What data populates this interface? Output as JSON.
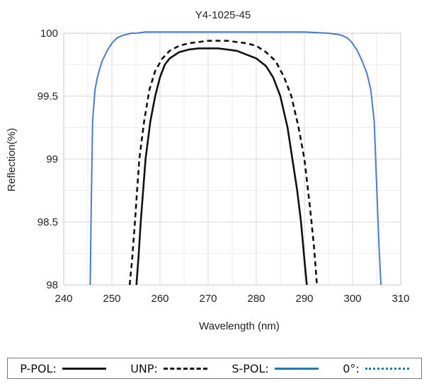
{
  "chart_data": {
    "type": "line",
    "title": "Y4-1025-45",
    "xlabel": "Wavelength (nm)",
    "ylabel": "Reflection(%)",
    "xlim": [
      240,
      310
    ],
    "ylim": [
      98,
      100
    ],
    "xticks": [
      "240",
      "250",
      "260",
      "270",
      "280",
      "290",
      "300",
      "310"
    ],
    "yticks": [
      "98",
      "98.5",
      "99",
      "99.5",
      "100"
    ],
    "grid": true,
    "legend_position": "bottom",
    "series": [
      {
        "name": "P-POL",
        "color": "#111111",
        "style": "solid",
        "x": [
          255.1,
          255.5,
          256.0,
          257.0,
          258.0,
          259.0,
          260.0,
          261.0,
          262.0,
          264.0,
          266.0,
          268.0,
          270.0,
          272.0,
          274.0,
          276.0,
          278.0,
          280.0,
          282.0,
          283.5,
          285.0,
          286.5,
          287.5,
          288.5,
          289.3,
          290.0,
          290.5
        ],
        "y": [
          98.0,
          98.2,
          98.5,
          99.0,
          99.3,
          99.5,
          99.65,
          99.75,
          99.8,
          99.85,
          99.87,
          99.88,
          99.88,
          99.88,
          99.87,
          99.86,
          99.83,
          99.8,
          99.74,
          99.65,
          99.5,
          99.25,
          99.0,
          98.75,
          98.5,
          98.2,
          98.0
        ]
      },
      {
        "name": "UNP",
        "color": "#111111",
        "style": "dashed",
        "x": [
          253.7,
          254.2,
          254.8,
          255.7,
          256.7,
          257.8,
          259.0,
          260.5,
          262.0,
          264.0,
          266.0,
          268.0,
          270.0,
          272.0,
          274.0,
          276.0,
          278.0,
          280.0,
          282.0,
          284.0,
          285.8,
          287.3,
          288.8,
          290.0,
          291.2,
          292.0,
          292.6
        ],
        "y": [
          98.0,
          98.2,
          98.5,
          99.0,
          99.3,
          99.55,
          99.7,
          99.8,
          99.86,
          99.9,
          99.92,
          99.93,
          99.94,
          99.94,
          99.94,
          99.93,
          99.92,
          99.9,
          99.85,
          99.78,
          99.65,
          99.5,
          99.25,
          99.0,
          98.6,
          98.3,
          98.0
        ]
      },
      {
        "name": "S-POL",
        "color": "#4a7bd0",
        "style": "solid",
        "x": [
          245.5,
          245.7,
          246.0,
          246.5,
          247.0,
          247.5,
          248.0,
          249.0,
          250.0,
          251.0,
          252.0,
          253.0,
          254.0,
          255.0,
          257.0,
          260.0,
          265.0,
          270.0,
          275.0,
          280.0,
          285.0,
          290.0,
          295.0,
          297.0,
          298.0,
          299.0,
          300.0,
          301.0,
          302.0,
          303.0,
          303.8,
          304.5,
          305.0,
          305.5,
          305.9
        ],
        "y": [
          98.0,
          98.6,
          99.3,
          99.55,
          99.65,
          99.72,
          99.78,
          99.86,
          99.92,
          99.96,
          99.98,
          99.99,
          100.0,
          100.0,
          100.01,
          100.01,
          100.01,
          100.01,
          100.01,
          100.01,
          100.01,
          100.01,
          100.0,
          99.99,
          99.98,
          99.96,
          99.92,
          99.86,
          99.78,
          99.68,
          99.55,
          99.3,
          98.8,
          98.3,
          98.0
        ]
      }
    ]
  },
  "legend": [
    {
      "label": "P-POL:",
      "color": "#111111",
      "style": "solid"
    },
    {
      "label": "UNP:",
      "color": "#111111",
      "style": "dashed"
    },
    {
      "label": "S-POL:",
      "color": "#1f77b4",
      "style": "solid"
    },
    {
      "label": "0°:",
      "color": "#1f77b4",
      "style": "dotted"
    }
  ]
}
